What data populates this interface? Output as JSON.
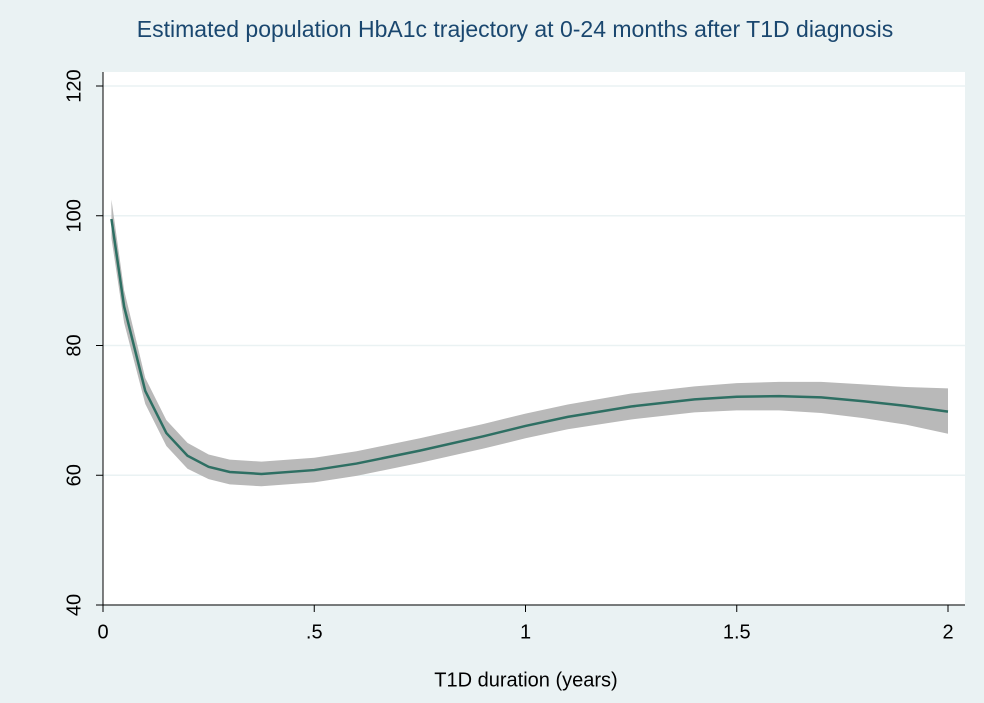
{
  "chart_data": {
    "type": "line",
    "title": "Estimated population HbA1c trajectory at 0-24 months after T1D diagnosis",
    "x_label": "T1D duration (years)",
    "x": [
      0.02,
      0.05,
      0.1,
      0.15,
      0.2,
      0.25,
      0.3,
      0.375,
      0.5,
      0.6,
      0.75,
      0.9,
      1.0,
      1.1,
      1.25,
      1.4,
      1.5,
      1.6,
      1.7,
      1.8,
      1.9,
      2.0
    ],
    "series": [
      {
        "color": "#2e6f63",
        "band_color": "#b9b9b9",
        "values": [
          99.5,
          86,
          73,
          66.5,
          63,
          61.3,
          60.5,
          60.2,
          60.8,
          61.8,
          63.8,
          66,
          67.6,
          69,
          70.6,
          71.7,
          72.1,
          72.2,
          72,
          71.4,
          70.7,
          69.8
        ],
        "lower": [
          96.5,
          83.5,
          71,
          64.5,
          61,
          59.4,
          58.6,
          58.3,
          58.9,
          59.9,
          61.9,
          64.1,
          65.7,
          67.1,
          68.6,
          69.7,
          70,
          70,
          69.6,
          68.8,
          67.8,
          66.4
        ],
        "upper": [
          102.5,
          88.5,
          75,
          68.5,
          65,
          63.2,
          62.4,
          62.1,
          62.7,
          63.7,
          65.7,
          67.9,
          69.5,
          70.9,
          72.6,
          73.7,
          74.2,
          74.4,
          74.4,
          74,
          73.6,
          73.4
        ]
      }
    ],
    "xlim": [
      0,
      2
    ],
    "ylim": [
      40,
      120
    ],
    "xticks": [
      0,
      {
        "value": 0.5,
        "label": ".5"
      },
      1,
      1.5,
      2
    ],
    "yticks": [
      40,
      60,
      80,
      100,
      120
    ],
    "grid": true
  }
}
